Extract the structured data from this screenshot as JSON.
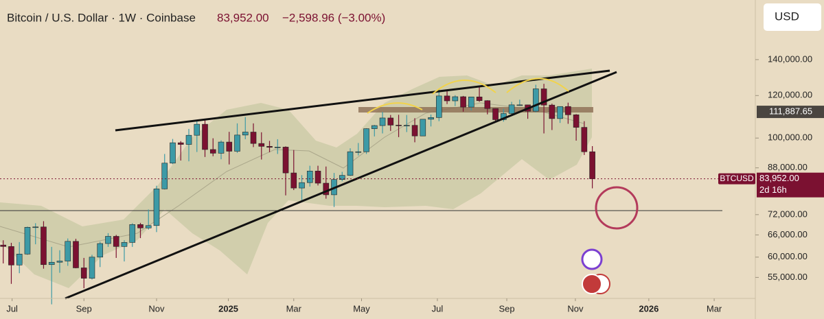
{
  "header": {
    "symbol": "Bitcoin / U.S. Dollar · 1W · Coinbase",
    "price": "83,952.00",
    "change": "−2,598.96 (−3.00%)",
    "currency": "USD"
  },
  "chart_data": {
    "type": "candlestick",
    "categories": [
      null,
      null,
      null,
      null,
      null,
      null,
      null,
      null,
      null,
      null,
      null,
      null,
      null,
      null,
      null,
      null,
      null,
      null,
      null,
      null,
      null,
      null,
      null,
      null,
      null,
      null,
      null,
      null,
      null,
      null,
      null,
      null,
      null,
      null,
      null,
      null,
      null,
      null,
      null,
      null,
      null,
      null,
      null,
      null,
      null,
      null,
      null,
      null,
      null,
      null,
      null,
      null,
      null,
      null,
      null,
      null,
      null,
      null,
      null,
      null,
      null,
      null,
      null,
      null,
      null,
      null,
      null,
      null,
      null,
      null,
      null,
      null,
      null,
      null
    ],
    "open": [
      63200,
      62800,
      58000,
      60800,
      68200,
      68300,
      58100,
      58700,
      59000,
      64200,
      57300,
      54800,
      60000,
      63600,
      65600,
      62800,
      63900,
      69000,
      68000,
      68700,
      80400,
      89800,
      98000,
      97300,
      101200,
      106100,
      95200,
      93700,
      98300,
      94500,
      101300,
      102600,
      97700,
      96500,
      96100,
      96200,
      86100,
      80700,
      82600,
      86800,
      82400,
      78400,
      83700,
      85200,
      94300,
      94300,
      104100,
      105500,
      109000,
      105700,
      105600,
      105600,
      100900,
      108400,
      109200,
      119800,
      117300,
      119400,
      114200,
      119300,
      117400,
      113500,
      108200,
      111100,
      115300,
      115300,
      112200,
      123500,
      115200,
      108700,
      114500,
      110500,
      104700,
      94300
    ],
    "high": [
      64500,
      63800,
      64000,
      68400,
      69400,
      70000,
      62700,
      61800,
      65000,
      64900,
      59800,
      60600,
      64100,
      66500,
      66000,
      64500,
      69400,
      69500,
      73600,
      81500,
      93400,
      99600,
      98700,
      104000,
      107800,
      108400,
      99900,
      99000,
      102700,
      106500,
      109400,
      106500,
      102500,
      98800,
      99500,
      96500,
      95000,
      85300,
      88800,
      88800,
      88500,
      86100,
      86500,
      95700,
      97900,
      104300,
      105800,
      111900,
      110400,
      110500,
      110400,
      108900,
      108500,
      110600,
      123200,
      123000,
      120200,
      119800,
      119300,
      124500,
      117600,
      113600,
      113400,
      116800,
      117900,
      115400,
      125700,
      126200,
      115900,
      114000,
      116400,
      110800,
      107500,
      96600
    ],
    "low": [
      58400,
      53500,
      56000,
      60600,
      63400,
      57100,
      49000,
      56100,
      57800,
      57200,
      52500,
      54500,
      57500,
      62700,
      59800,
      58900,
      62700,
      65100,
      67500,
      66800,
      80200,
      89400,
      90800,
      90500,
      94200,
      92200,
      92500,
      91300,
      89300,
      93800,
      99500,
      96200,
      91200,
      94100,
      93400,
      78200,
      80000,
      76600,
      81200,
      81600,
      77100,
      74400,
      83100,
      85000,
      92800,
      93400,
      100700,
      102000,
      103100,
      100400,
      102600,
      98200,
      100800,
      105100,
      107500,
      115700,
      114700,
      112000,
      112600,
      116800,
      110700,
      107300,
      107300,
      110600,
      114800,
      108600,
      111600,
      102000,
      103500,
      106700,
      106300,
      98900,
      93000,
      80600
    ],
    "close": [
      62800,
      58000,
      60800,
      68200,
      68300,
      58100,
      58700,
      59000,
      64200,
      57300,
      54800,
      60000,
      63600,
      65600,
      62800,
      63900,
      69000,
      68000,
      68700,
      80400,
      89800,
      98000,
      97300,
      101200,
      106100,
      95200,
      93700,
      98300,
      94500,
      101300,
      102600,
      97700,
      96500,
      96100,
      96200,
      86100,
      80700,
      82600,
      86800,
      82400,
      78400,
      83700,
      85200,
      94300,
      94300,
      104100,
      105500,
      109000,
      105700,
      105600,
      105600,
      100900,
      108400,
      109200,
      119800,
      117300,
      119400,
      114200,
      119300,
      117400,
      113500,
      108200,
      111100,
      115300,
      115300,
      112200,
      123500,
      115200,
      108700,
      114500,
      110500,
      104700,
      94300,
      83952
    ],
    "up_color": "#3d9aa6",
    "down_color": "#7b1131",
    "xlim": [
      -0.4,
      93.2
    ],
    "xticks": [
      {
        "value": 1.1,
        "label": "Jul"
      },
      {
        "value": 10,
        "label": "Sep"
      },
      {
        "value": 19,
        "label": "Nov"
      },
      {
        "value": 27.9,
        "label": "2025"
      },
      {
        "value": 36,
        "label": "Mar"
      },
      {
        "value": 44.4,
        "label": "May"
      },
      {
        "value": 53.8,
        "label": "Jul"
      },
      {
        "value": 62.4,
        "label": "Sep"
      },
      {
        "value": 70.9,
        "label": "Nov"
      },
      {
        "value": 80,
        "label": "2026"
      },
      {
        "value": 88.1,
        "label": "Mar"
      }
    ],
    "ylim": [
      50260,
      180800
    ],
    "log_scale": true,
    "yticks": [
      {
        "value": 140000,
        "label": "140,000.00"
      },
      {
        "value": 120000,
        "label": "120,000.00"
      },
      {
        "value": 100000,
        "label": "100,000.00"
      },
      {
        "value": 88000,
        "label": "88,000.00"
      },
      {
        "value": 72000,
        "label": "72,000.00"
      },
      {
        "value": 66000,
        "label": "66,000.00"
      },
      {
        "value": 60000,
        "label": "60,000.00"
      },
      {
        "value": 55000,
        "label": "55,000.00"
      }
    ],
    "markers": [
      {
        "value": 111887.65,
        "label": "111,887.65"
      },
      {
        "value": 83952,
        "label": "83,952.00",
        "name": "BTCUSD",
        "countdown": "2d 16h"
      }
    ]
  }
}
